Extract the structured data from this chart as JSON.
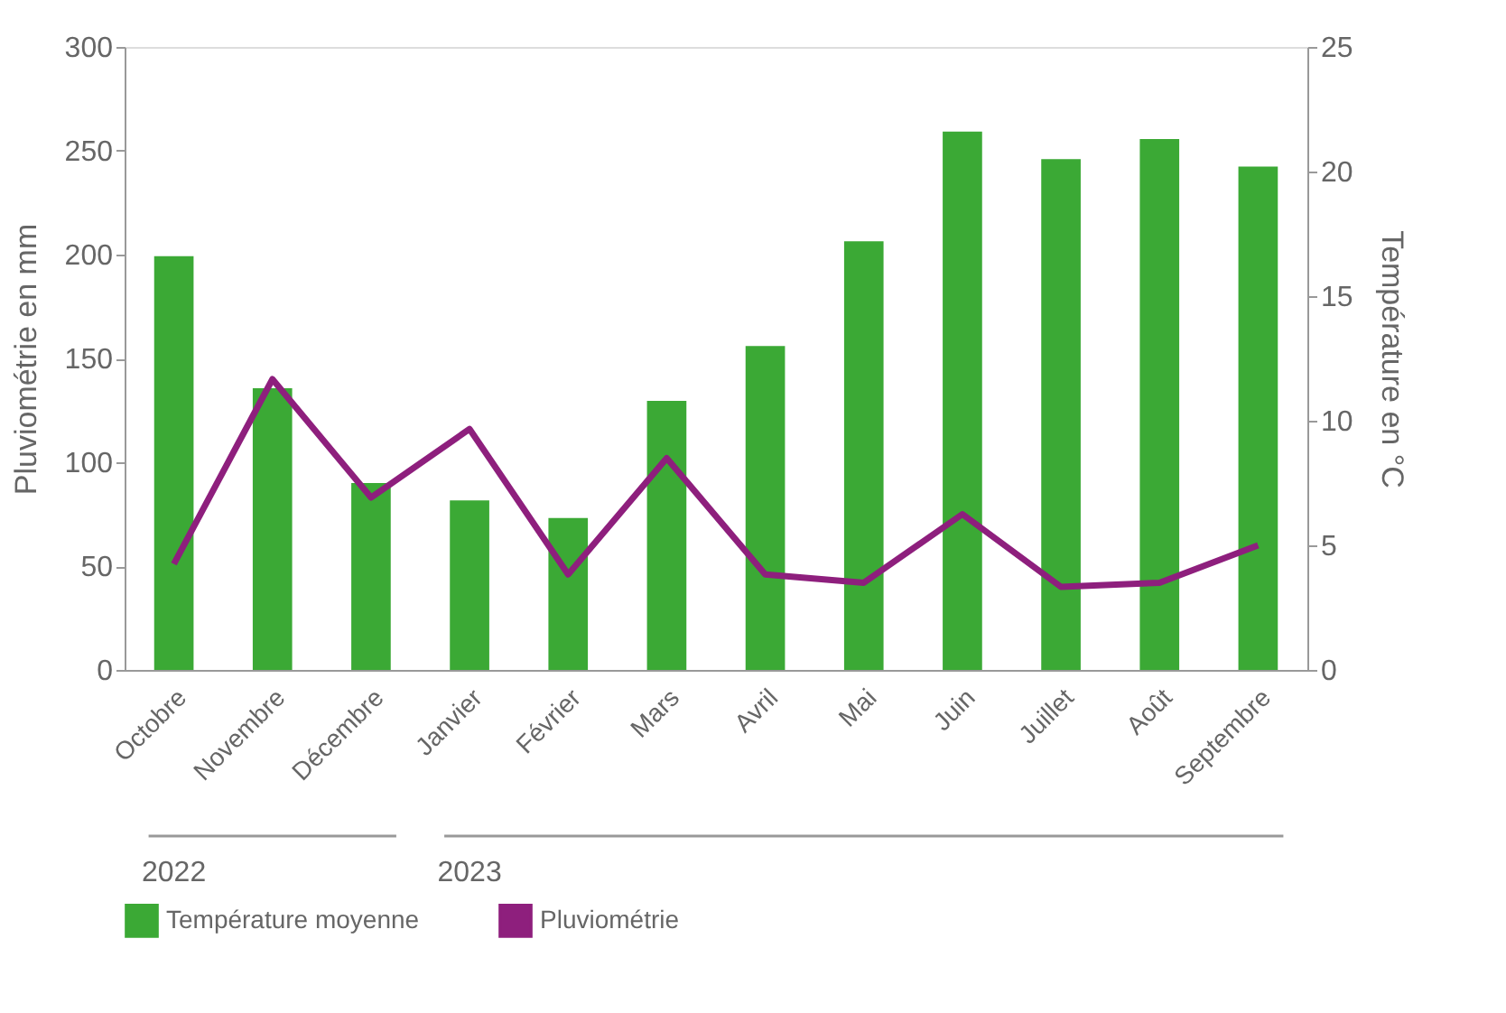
{
  "chart_data": {
    "type": "bar",
    "ylabel": "Pluviométrie en mm",
    "y2label": "Température en °C",
    "categories": [
      "Octobre",
      "Novembre",
      "Décembre",
      "Janvier",
      "Février",
      "Mars",
      "Avril",
      "Mai",
      "Juin",
      "Juillet",
      "Août",
      "Septembre"
    ],
    "series": [
      {
        "name": "Température moyenne",
        "axis": "y2",
        "color": "#3ba935",
        "values": [
          16.6,
          11.3,
          7.5,
          6.8,
          6.1,
          10.8,
          13.0,
          17.2,
          21.6,
          20.5,
          21.3,
          20.2
        ]
      },
      {
        "name": "Pluviométrie",
        "type": "line",
        "axis": "y",
        "color": "#8e1f7d",
        "values": [
          51,
          140,
          83,
          116,
          46,
          102,
          46,
          42,
          75,
          40,
          42,
          60
        ]
      }
    ],
    "ylim": [
      0,
      300
    ],
    "yticks": [
      0,
      50,
      100,
      150,
      200,
      250,
      300
    ],
    "y2lim": [
      0,
      25
    ],
    "y2ticks": [
      0,
      5,
      10,
      15,
      20,
      25
    ],
    "annotations": [
      "2022",
      "2023"
    ],
    "grid": false,
    "legend": "bottom",
    "marker": "none",
    "line_style": "solid"
  }
}
